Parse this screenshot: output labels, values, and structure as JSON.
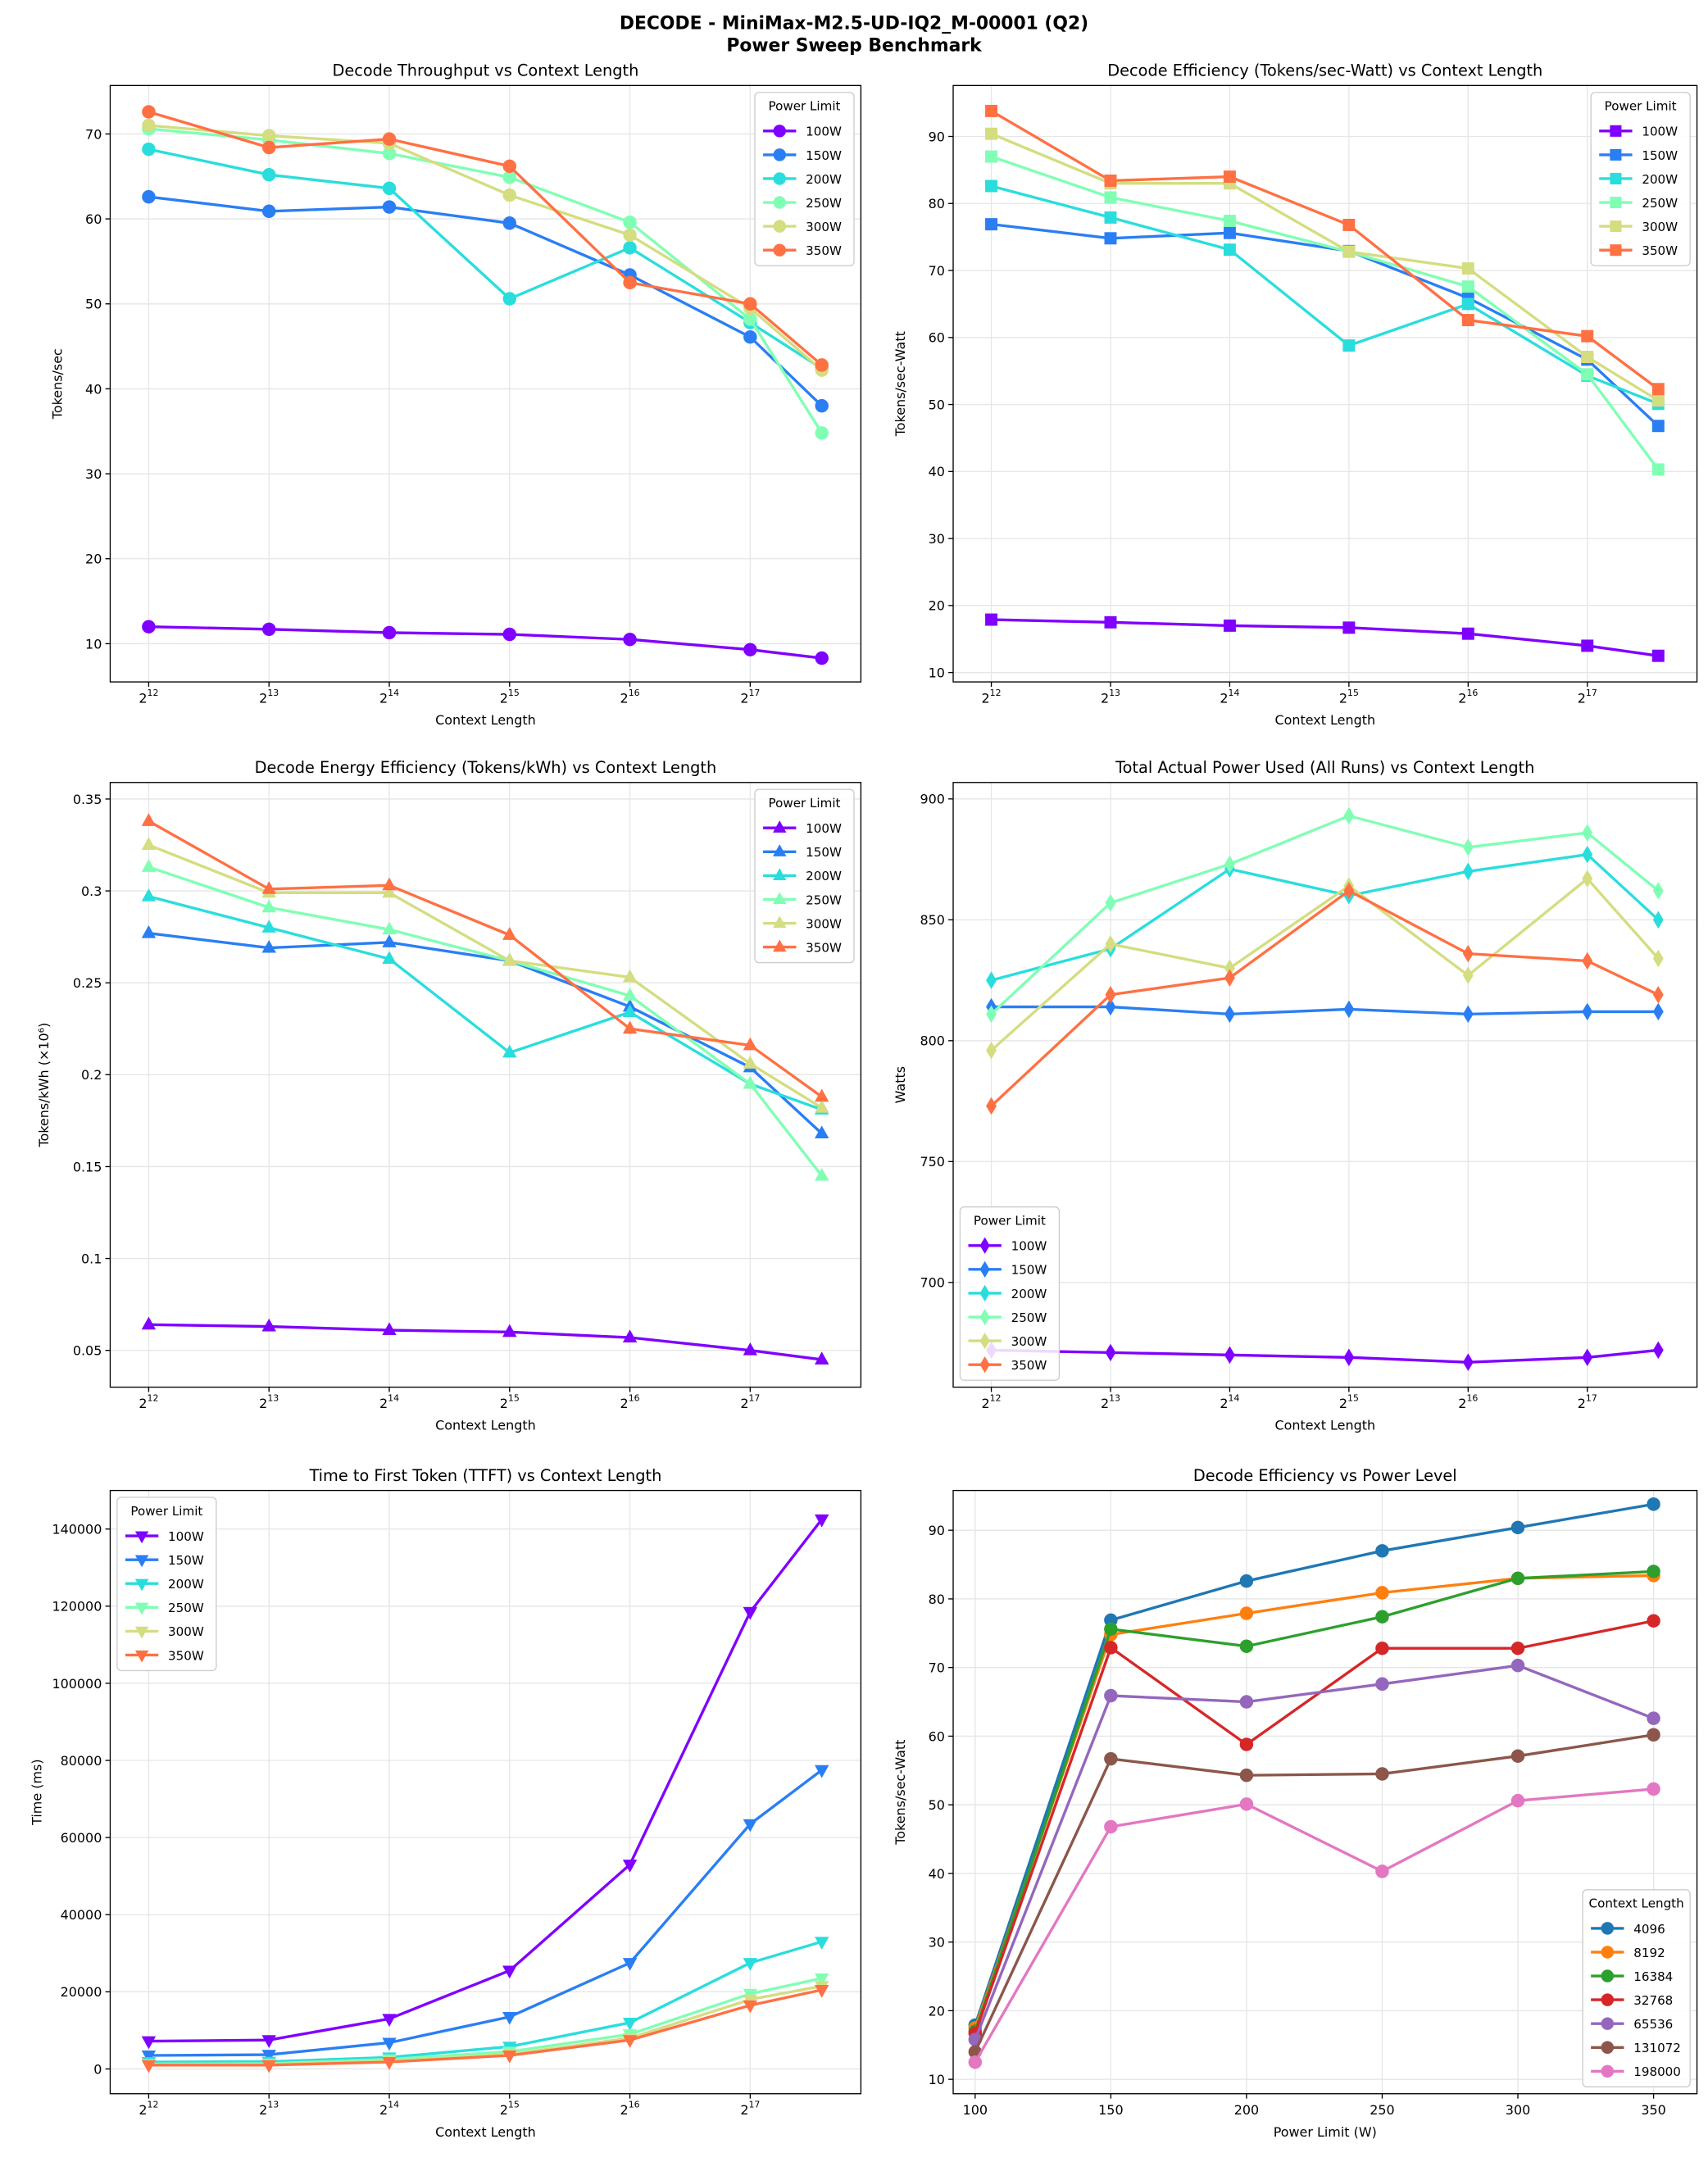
{
  "suptitle": [
    "DECODE - MiniMax-M2.5-UD-IQ2_M-00001 (Q2)",
    "Power Sweep Benchmark"
  ],
  "chart_data": [
    {
      "type": "line",
      "title": "Decode Throughput vs Context Length",
      "xlabel": "Context Length",
      "ylabel": "Tokens/sec",
      "xscale": "log2",
      "x": [
        4096,
        8192,
        16384,
        32768,
        65536,
        131072,
        198000
      ],
      "xticks": [
        "12",
        "13",
        "14",
        "15",
        "16",
        "17"
      ],
      "ylim": [
        5.5,
        75.7
      ],
      "yticks": [
        10,
        20,
        30,
        40,
        50,
        60,
        70
      ],
      "grid": true,
      "marker": "circle",
      "legend": {
        "title": "Power Limit",
        "placement": "upper-right"
      },
      "series": [
        {
          "name": "100W",
          "color": "#8000ff",
          "values": [
            12.0,
            11.7,
            11.3,
            11.1,
            10.5,
            9.3,
            8.3
          ]
        },
        {
          "name": "150W",
          "color": "#2a7ef4",
          "values": [
            62.6,
            60.9,
            61.4,
            59.5,
            53.4,
            46.1,
            38.0
          ]
        },
        {
          "name": "200W",
          "color": "#2adddd",
          "values": [
            68.2,
            65.2,
            63.6,
            50.6,
            56.6,
            47.8,
            42.4
          ]
        },
        {
          "name": "250W",
          "color": "#80ffb4",
          "values": [
            70.6,
            69.3,
            67.7,
            64.9,
            59.6,
            48.2,
            34.8
          ]
        },
        {
          "name": "300W",
          "color": "#d4dd80",
          "values": [
            71.0,
            69.8,
            68.9,
            62.8,
            58.1,
            49.5,
            42.2
          ]
        },
        {
          "name": "350W",
          "color": "#ff7043",
          "values": [
            72.6,
            68.4,
            69.4,
            66.2,
            52.5,
            50.0,
            42.8
          ]
        }
      ]
    },
    {
      "type": "line",
      "title": "Decode Efficiency (Tokens/sec-Watt) vs Context Length",
      "xlabel": "Context Length",
      "ylabel": "Tokens/sec-Watt",
      "xscale": "log2",
      "x": [
        4096,
        8192,
        16384,
        32768,
        65536,
        131072,
        198000
      ],
      "xticks": [
        "12",
        "13",
        "14",
        "15",
        "16",
        "17"
      ],
      "ylim": [
        8.6,
        97.6
      ],
      "yticks": [
        10,
        20,
        30,
        40,
        50,
        60,
        70,
        80,
        90
      ],
      "grid": true,
      "marker": "square",
      "legend": {
        "title": "Power Limit",
        "placement": "upper-right"
      },
      "series": [
        {
          "name": "100W",
          "color": "#8000ff",
          "values": [
            17.9,
            17.5,
            17.0,
            16.7,
            15.8,
            14.0,
            12.5
          ]
        },
        {
          "name": "150W",
          "color": "#2a7ef4",
          "values": [
            76.9,
            74.8,
            75.6,
            72.9,
            65.9,
            56.7,
            46.8
          ]
        },
        {
          "name": "200W",
          "color": "#2adddd",
          "values": [
            82.6,
            77.9,
            73.1,
            58.8,
            65.0,
            54.3,
            50.1
          ]
        },
        {
          "name": "250W",
          "color": "#80ffb4",
          "values": [
            87.0,
            80.9,
            77.4,
            72.8,
            67.6,
            54.5,
            40.3
          ]
        },
        {
          "name": "300W",
          "color": "#d4dd80",
          "values": [
            90.4,
            83.0,
            83.0,
            72.8,
            70.3,
            57.1,
            50.6
          ]
        },
        {
          "name": "350W",
          "color": "#ff7043",
          "values": [
            93.8,
            83.4,
            84.0,
            76.8,
            62.6,
            60.2,
            52.3
          ]
        }
      ]
    },
    {
      "type": "line",
      "title": "Decode Energy Efficiency (Tokens/kWh) vs Context Length",
      "xlabel": "Context Length",
      "ylabel": "Tokens/kWh (×10⁶)",
      "xscale": "log2",
      "x": [
        4096,
        8192,
        16384,
        32768,
        65536,
        131072,
        198000
      ],
      "xticks": [
        "12",
        "13",
        "14",
        "15",
        "16",
        "17"
      ],
      "ylim": [
        0.03,
        0.359
      ],
      "yticks": [
        0.05,
        0.1,
        0.15,
        0.2,
        0.25,
        0.3,
        0.35
      ],
      "grid": true,
      "marker": "triangle-up",
      "legend": {
        "title": "Power Limit",
        "placement": "upper-right"
      },
      "series": [
        {
          "name": "100W",
          "color": "#8000ff",
          "values": [
            0.064,
            0.063,
            0.061,
            0.06,
            0.057,
            0.05,
            0.045
          ]
        },
        {
          "name": "150W",
          "color": "#2a7ef4",
          "values": [
            0.277,
            0.269,
            0.272,
            0.262,
            0.237,
            0.204,
            0.168
          ]
        },
        {
          "name": "200W",
          "color": "#2adddd",
          "values": [
            0.297,
            0.28,
            0.263,
            0.212,
            0.234,
            0.195,
            0.181
          ]
        },
        {
          "name": "250W",
          "color": "#80ffb4",
          "values": [
            0.313,
            0.291,
            0.279,
            0.262,
            0.243,
            0.195,
            0.145
          ]
        },
        {
          "name": "300W",
          "color": "#d4dd80",
          "values": [
            0.325,
            0.299,
            0.299,
            0.262,
            0.253,
            0.206,
            0.182
          ]
        },
        {
          "name": "350W",
          "color": "#ff7043",
          "values": [
            0.338,
            0.301,
            0.303,
            0.276,
            0.225,
            0.216,
            0.188
          ]
        }
      ]
    },
    {
      "type": "line",
      "title": "Total Actual Power Used (All Runs) vs Context Length",
      "xlabel": "Context Length",
      "ylabel": "Watts",
      "xscale": "log2",
      "x": [
        4096,
        8192,
        16384,
        32768,
        65536,
        131072,
        198000
      ],
      "xticks": [
        "12",
        "13",
        "14",
        "15",
        "16",
        "17"
      ],
      "ylim": [
        656.7,
        906.8
      ],
      "yticks": [
        700,
        750,
        800,
        850,
        900
      ],
      "grid": true,
      "marker": "diamond",
      "legend": {
        "title": "Power Limit",
        "placement": "lower-left"
      },
      "series": [
        {
          "name": "100W",
          "color": "#8000ff",
          "values": [
            672,
            671,
            670,
            669,
            667,
            669,
            672
          ]
        },
        {
          "name": "150W",
          "color": "#2a7ef4",
          "values": [
            814,
            814,
            811,
            813,
            811,
            812,
            812
          ]
        },
        {
          "name": "200W",
          "color": "#2adddd",
          "values": [
            825,
            838,
            871,
            860,
            870,
            877,
            850
          ]
        },
        {
          "name": "250W",
          "color": "#80ffb4",
          "values": [
            811,
            857,
            873,
            893,
            880,
            886,
            862
          ]
        },
        {
          "name": "300W",
          "color": "#d4dd80",
          "values": [
            796,
            840,
            830,
            864,
            827,
            867,
            834
          ]
        },
        {
          "name": "350W",
          "color": "#ff7043",
          "values": [
            773,
            819,
            826,
            862,
            836,
            833,
            819
          ]
        }
      ]
    },
    {
      "type": "line",
      "title": "Time to First Token (TTFT) vs Context Length",
      "xlabel": "Context Length",
      "ylabel": "Time (ms)",
      "xscale": "log2",
      "x": [
        4096,
        8192,
        16384,
        32768,
        65536,
        131072,
        198000
      ],
      "xticks": [
        "12",
        "13",
        "14",
        "15",
        "16",
        "17"
      ],
      "ylim": [
        -6430,
        150000
      ],
      "yticks": [
        0,
        20000,
        40000,
        60000,
        80000,
        100000,
        120000,
        140000
      ],
      "grid": true,
      "marker": "triangle-down",
      "legend": {
        "title": "Power Limit",
        "placement": "upper-left"
      },
      "series": [
        {
          "name": "100W",
          "color": "#8000ff",
          "values": [
            7200,
            7500,
            13000,
            25500,
            53000,
            118500,
            142500
          ]
        },
        {
          "name": "150W",
          "color": "#2a7ef4",
          "values": [
            3500,
            3700,
            6800,
            13500,
            27500,
            63500,
            77500
          ]
        },
        {
          "name": "200W",
          "color": "#2adddd",
          "values": [
            1800,
            1900,
            3000,
            5800,
            12000,
            27500,
            33000
          ]
        },
        {
          "name": "250W",
          "color": "#80ffb4",
          "values": [
            1300,
            1400,
            2500,
            4500,
            9000,
            19500,
            23500
          ]
        },
        {
          "name": "300W",
          "color": "#d4dd80",
          "values": [
            1100,
            1200,
            2000,
            3800,
            8000,
            18000,
            21500
          ]
        },
        {
          "name": "350W",
          "color": "#ff7043",
          "values": [
            1000,
            1000,
            1800,
            3500,
            7500,
            16500,
            20500
          ]
        }
      ]
    },
    {
      "type": "line",
      "title": "Decode Efficiency vs Power Level",
      "xlabel": "Power Limit (W)",
      "ylabel": "Tokens/sec-Watt",
      "xscale": "linear",
      "x": [
        100,
        150,
        200,
        250,
        300,
        350
      ],
      "xlim": [
        91.9,
        366
      ],
      "xticks": [
        "100",
        "150",
        "200",
        "250",
        "300",
        "350"
      ],
      "ylim": [
        7.9,
        95.8
      ],
      "yticks": [
        10,
        20,
        30,
        40,
        50,
        60,
        70,
        80,
        90
      ],
      "grid": true,
      "marker": "circle",
      "legend": {
        "title": "Context Length",
        "placement": "lower-right"
      },
      "series": [
        {
          "name": "4096",
          "color": "#1f77b4",
          "values": [
            17.9,
            76.9,
            82.6,
            87.0,
            90.4,
            93.8
          ]
        },
        {
          "name": "8192",
          "color": "#ff7f0e",
          "values": [
            17.5,
            74.8,
            77.9,
            80.9,
            83.0,
            83.4
          ]
        },
        {
          "name": "16384",
          "color": "#2ca02c",
          "values": [
            17.0,
            75.6,
            73.1,
            77.4,
            83.0,
            84.0
          ]
        },
        {
          "name": "32768",
          "color": "#d62728",
          "values": [
            16.7,
            72.9,
            58.8,
            72.8,
            72.8,
            76.8
          ]
        },
        {
          "name": "65536",
          "color": "#9467bd",
          "values": [
            15.8,
            65.9,
            65.0,
            67.6,
            70.3,
            62.6
          ]
        },
        {
          "name": "131072",
          "color": "#8c564b",
          "values": [
            14.0,
            56.7,
            54.3,
            54.5,
            57.1,
            60.2
          ]
        },
        {
          "name": "198000",
          "color": "#e377c2",
          "values": [
            12.5,
            46.8,
            50.1,
            40.3,
            50.6,
            52.3
          ]
        }
      ]
    }
  ]
}
